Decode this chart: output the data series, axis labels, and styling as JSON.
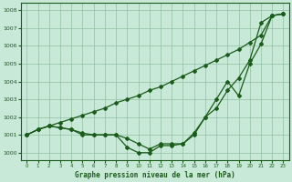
{
  "title": "Graphe pression niveau de la mer (hPa)",
  "bg_color": "#c8e8d8",
  "line_color": "#1a5c1a",
  "grid_color": "#90c0a0",
  "xlim": [
    -0.5,
    23.5
  ],
  "ylim": [
    999.6,
    1008.4
  ],
  "yticks": [
    1000,
    1001,
    1002,
    1003,
    1004,
    1005,
    1006,
    1007,
    1008
  ],
  "xticks": [
    0,
    1,
    2,
    3,
    4,
    5,
    6,
    7,
    8,
    9,
    10,
    11,
    12,
    13,
    14,
    15,
    16,
    17,
    18,
    19,
    20,
    21,
    22,
    23
  ],
  "series": [
    [
      1001.0,
      1001.3,
      1001.5,
      1001.7,
      1001.9,
      1002.1,
      1002.3,
      1002.5,
      1002.8,
      1003.0,
      1003.2,
      1003.5,
      1003.7,
      1004.0,
      1004.3,
      1004.6,
      1004.9,
      1005.2,
      1005.5,
      1005.8,
      1006.2,
      1006.6,
      1007.7,
      1007.8
    ],
    [
      1001.0,
      1001.3,
      1001.5,
      1001.4,
      1001.3,
      1001.1,
      1001.0,
      1001.0,
      1001.0,
      1000.8,
      1000.5,
      1000.2,
      1000.5,
      1000.5,
      1000.5,
      1001.1,
      1002.0,
      1002.5,
      1003.5,
      1004.2,
      1005.2,
      1007.3,
      1007.7,
      1007.8
    ],
    [
      1001.0,
      1001.3,
      1001.5,
      1001.4,
      1001.3,
      1001.0,
      1001.0,
      1001.0,
      1001.0,
      1000.3,
      1000.0,
      1000.0,
      1000.4,
      1000.4,
      1000.5,
      1001.0,
      1002.0,
      1003.0,
      1004.0,
      1003.2,
      1005.0,
      1006.1,
      1007.7,
      1007.8
    ]
  ]
}
